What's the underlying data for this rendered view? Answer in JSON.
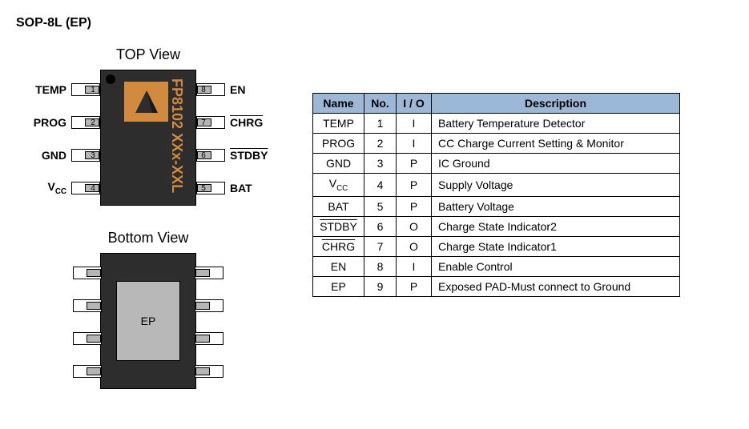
{
  "title": "SOP-8L (EP)",
  "top_view_label": "TOP View",
  "bottom_view_label": "Bottom View",
  "part_number": "FP8102",
  "date_code": "XXx-XXL",
  "ep_label": "EP",
  "chip_colors": {
    "body": "#2d2d2e",
    "logo_bg": "#d18a3e",
    "text": "#d18a3e",
    "lead_inner": "#b5b5b5",
    "ep_pad": "#b8b8b8"
  },
  "pins_left": [
    {
      "num": "1",
      "label": "TEMP",
      "overline": false
    },
    {
      "num": "2",
      "label": "PROG",
      "overline": false
    },
    {
      "num": "3",
      "label": "GND",
      "overline": false
    },
    {
      "num": "4",
      "label_html": "V<sub>CC</sub>",
      "label": "Vcc",
      "overline": false
    }
  ],
  "pins_right": [
    {
      "num": "8",
      "label": "EN",
      "overline": false
    },
    {
      "num": "7",
      "label": "CHRG",
      "overline": true
    },
    {
      "num": "6",
      "label": "STDBY",
      "overline": true
    },
    {
      "num": "5",
      "label": "BAT",
      "overline": false
    }
  ],
  "pin_row_tops": [
    12,
    53,
    94,
    135
  ],
  "table": {
    "headers": [
      "Name",
      "No.",
      "I / O",
      "Description"
    ],
    "header_bg": "#9db7d6",
    "rows": [
      {
        "name": "TEMP",
        "overline": false,
        "no": "1",
        "io": "I",
        "desc": "Battery Temperature Detector"
      },
      {
        "name": "PROG",
        "overline": false,
        "no": "2",
        "io": "I",
        "desc": "CC Charge Current Setting & Monitor"
      },
      {
        "name": "GND",
        "overline": false,
        "no": "3",
        "io": "P",
        "desc": "IC Ground"
      },
      {
        "name": "Vcc",
        "vcc": true,
        "overline": false,
        "no": "4",
        "io": "P",
        "desc": "Supply Voltage"
      },
      {
        "name": "BAT",
        "overline": false,
        "no": "5",
        "io": "P",
        "desc": "Battery Voltage"
      },
      {
        "name": "STDBY",
        "overline": true,
        "no": "6",
        "io": "O",
        "desc": "Charge State Indicator2"
      },
      {
        "name": "CHRG",
        "overline": true,
        "no": "7",
        "io": "O",
        "desc": "Charge State Indicator1"
      },
      {
        "name": "EN",
        "overline": false,
        "no": "8",
        "io": "I",
        "desc": "Enable Control"
      },
      {
        "name": "EP",
        "overline": false,
        "no": "9",
        "io": "P",
        "desc": "Exposed PAD-Must connect to Ground"
      }
    ]
  }
}
